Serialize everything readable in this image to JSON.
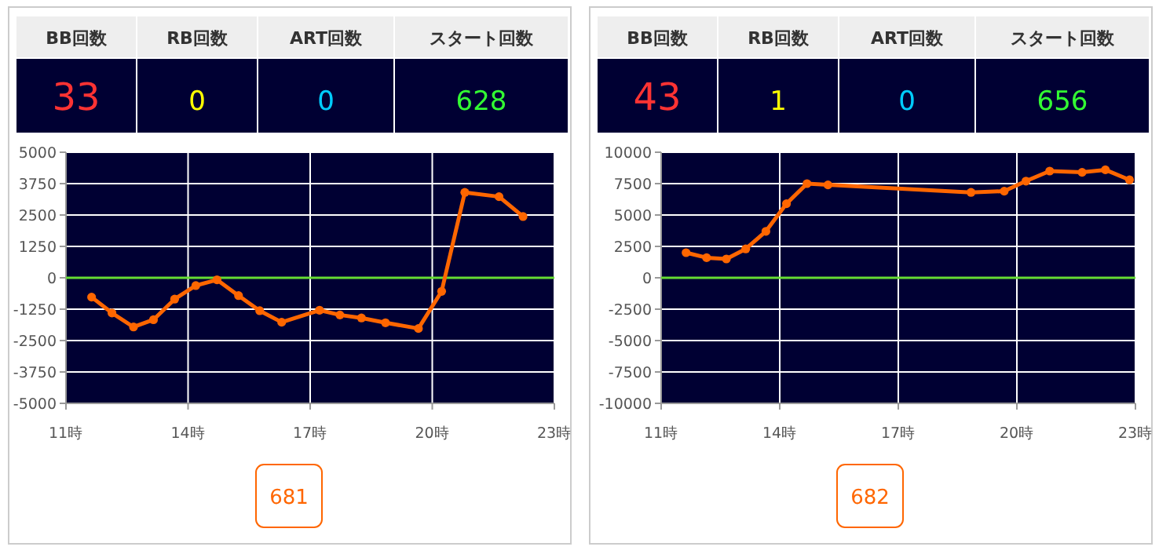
{
  "chart_data": [
    {
      "type": "line",
      "annotations": [
        "BB回数",
        "RB回数",
        "ART回数",
        "スタート回数",
        "33",
        "0",
        "0",
        "628",
        "681"
      ],
      "series": [
        {
          "color": "#ff6600",
          "x": [
            11.63,
            12.13,
            12.66,
            13.15,
            13.67,
            14.19,
            14.71,
            15.24,
            15.76,
            16.3,
            17.23,
            17.73,
            18.26,
            18.85,
            19.66,
            20.23,
            20.8,
            21.64,
            22.23
          ],
          "values": [
            -770,
            -1400,
            -1960,
            -1670,
            -850,
            -310,
            -80,
            -710,
            -1310,
            -1770,
            -1290,
            -1480,
            -1600,
            -1790,
            -2020,
            -540,
            3400,
            3230,
            2440
          ]
        }
      ],
      "xlim": [
        11,
        23
      ],
      "xticks": [
        {
          "value": 11,
          "label": "11時"
        },
        {
          "value": 14,
          "label": "14時"
        },
        {
          "value": 17,
          "label": "17時"
        },
        {
          "value": 20,
          "label": "20時"
        },
        {
          "value": 23,
          "label": "23時"
        }
      ],
      "ylim": [
        -5000,
        5000
      ],
      "yticks": [
        -5000,
        -3750,
        -2500,
        -1250,
        0,
        1250,
        2500,
        3750,
        5000
      ],
      "ref_lines": [
        {
          "axis": "y",
          "value": 0,
          "color": "#66dd33"
        }
      ],
      "grid": true,
      "marker": "circle",
      "line_style": "solid"
    },
    {
      "type": "line",
      "annotations": [
        "BB回数",
        "RB回数",
        "ART回数",
        "スタート回数",
        "43",
        "1",
        "0",
        "656",
        "682"
      ],
      "series": [
        {
          "color": "#ff6600",
          "x": [
            11.63,
            12.15,
            12.65,
            13.14,
            13.65,
            14.17,
            14.69,
            15.22,
            18.84,
            19.68,
            20.23,
            20.83,
            21.65,
            22.24,
            22.85
          ],
          "values": [
            2000,
            1600,
            1500,
            2300,
            3700,
            5900,
            7500,
            7400,
            6800,
            6900,
            7700,
            8500,
            8400,
            8600,
            7800
          ]
        }
      ],
      "xlim": [
        11,
        23
      ],
      "xticks": [
        {
          "value": 11,
          "label": "11時"
        },
        {
          "value": 14,
          "label": "14時"
        },
        {
          "value": 17,
          "label": "17時"
        },
        {
          "value": 20,
          "label": "20時"
        },
        {
          "value": 23,
          "label": "23時"
        }
      ],
      "ylim": [
        -10000,
        10000
      ],
      "yticks": [
        -10000,
        -7500,
        -5000,
        -2500,
        0,
        2500,
        5000,
        7500,
        10000
      ],
      "ref_lines": [
        {
          "axis": "y",
          "value": 0,
          "color": "#66dd33"
        }
      ],
      "grid": true,
      "marker": "circle",
      "line_style": "solid"
    }
  ]
}
